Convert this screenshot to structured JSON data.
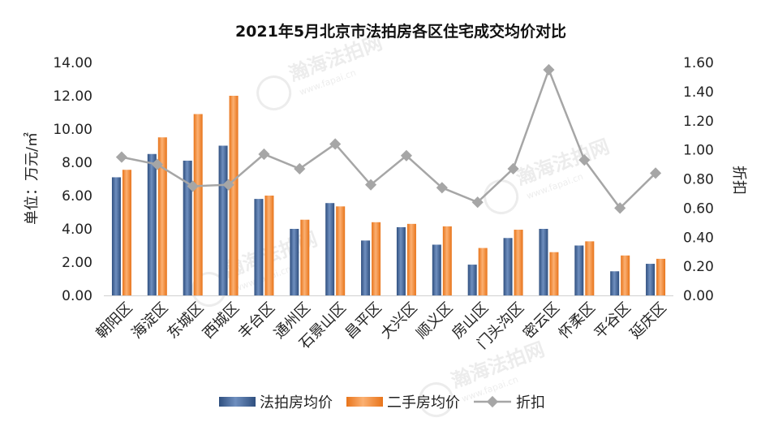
{
  "chart_data": {
    "type": "bar+line",
    "title": "2021年5月北京市法拍房各区住宅成交均价对比",
    "categories": [
      "朝阳区",
      "海淀区",
      "东城区",
      "西城区",
      "丰台区",
      "通州区",
      "石景山区",
      "昌平区",
      "大兴区",
      "顺义区",
      "房山区",
      "门头沟区",
      "密云区",
      "怀柔区",
      "平谷区",
      "延庆区"
    ],
    "series": [
      {
        "name": "法拍房均价",
        "type": "bar",
        "axis": "left",
        "color": "#4a6fa5",
        "values": [
          7.1,
          8.5,
          8.1,
          9.0,
          5.8,
          4.0,
          5.55,
          3.3,
          4.1,
          3.05,
          1.85,
          3.45,
          4.0,
          3.0,
          1.45,
          1.9
        ]
      },
      {
        "name": "二手房均价",
        "type": "bar",
        "axis": "left",
        "color": "#f58b2f",
        "values": [
          7.55,
          9.5,
          10.9,
          12.0,
          6.0,
          4.55,
          5.35,
          4.4,
          4.3,
          4.15,
          2.85,
          3.95,
          2.6,
          3.25,
          2.4,
          2.2
        ]
      },
      {
        "name": "折扣",
        "type": "line",
        "axis": "right",
        "color": "#a6a6a6",
        "values": [
          0.95,
          0.9,
          0.75,
          0.76,
          0.97,
          0.87,
          1.04,
          0.76,
          0.96,
          0.74,
          0.64,
          0.87,
          1.55,
          0.93,
          0.6,
          0.84
        ]
      }
    ],
    "ylabel": "单位：万元/㎡",
    "ylabel_right": "折扣",
    "ylim": [
      0,
      14
    ],
    "ylim_right": [
      0,
      1.6
    ],
    "yticks": [
      "0.00",
      "2.00",
      "4.00",
      "6.00",
      "8.00",
      "10.00",
      "12.00",
      "14.00"
    ],
    "yticks_right": [
      "0.00",
      "0.20",
      "0.40",
      "0.60",
      "0.80",
      "1.00",
      "1.20",
      "1.40",
      "1.60"
    ],
    "legend_position": "bottom",
    "grid": false
  },
  "watermarks": [
    "瀚海法拍网",
    "www.fapai.cn"
  ]
}
